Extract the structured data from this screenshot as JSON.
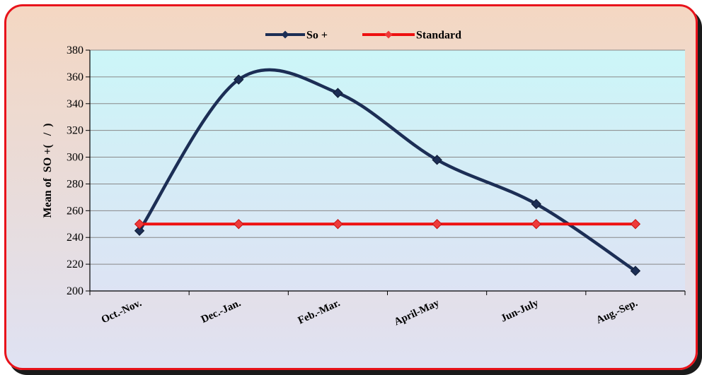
{
  "chart_data": {
    "type": "line",
    "title": "",
    "xlabel": "",
    "ylabel": "Mean of  SO +(   /  )",
    "categories": [
      "Oct.-Nov.",
      "Dec.-Jan.",
      "Feb.-Mar.",
      "April-May",
      "Jun-July",
      "Aug.-Sep."
    ],
    "ylim": [
      200,
      380
    ],
    "ytick_step": 20,
    "grid": true,
    "legend_position": "top-center",
    "series": [
      {
        "name": "So +",
        "values": [
          245,
          358,
          348,
          298,
          265,
          215
        ],
        "color": "#1c2e55",
        "marker_color": "#1c2e55",
        "smooth": true
      },
      {
        "name": "Standard",
        "values": [
          250,
          250,
          250,
          250,
          250,
          250
        ],
        "color": "#ee1010",
        "marker_color": "#ee3a3a",
        "smooth": false
      }
    ],
    "colors": {
      "frame_border": "#e8131b",
      "plot_top": "#ccf6f8",
      "plot_bottom": "#dde3f4",
      "grid": "#888888"
    }
  }
}
